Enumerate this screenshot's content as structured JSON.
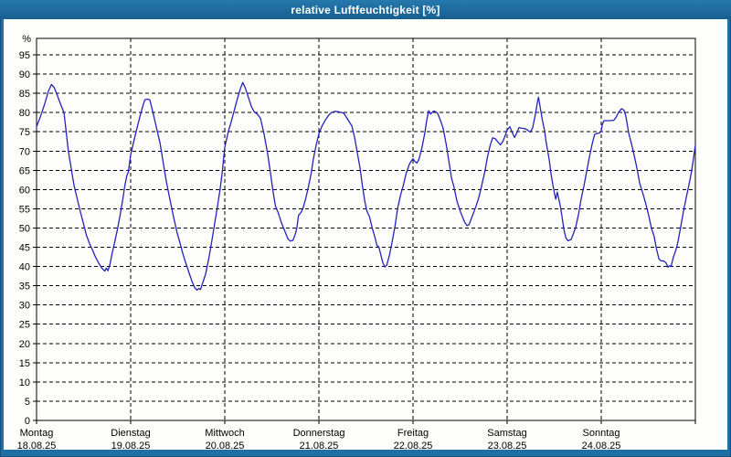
{
  "window": {
    "title": "relative Luftfeuchtigkeit [%]"
  },
  "colors": {
    "frame_blue": "#1d6fa5",
    "titlebar_gradient_top": "#2679ae",
    "titlebar_gradient_bottom": "#175e90",
    "plot_background": "#fdfdfb",
    "grid_black": "#000000",
    "line_blue": "#2323bb"
  },
  "chart_data": {
    "type": "line",
    "title": "relative Luftfeuchtigkeit [%]",
    "ylabel": "%",
    "ylim": [
      0,
      99
    ],
    "y_ticks": [
      0,
      5,
      10,
      15,
      20,
      25,
      30,
      35,
      40,
      45,
      50,
      55,
      60,
      65,
      70,
      75,
      80,
      85,
      90,
      95
    ],
    "grid": "dashed",
    "legend_position": "none",
    "x_axis": {
      "unit": "hours",
      "range": [
        0,
        168
      ],
      "hours_per_day": 24
    },
    "days": [
      {
        "name": "Montag",
        "date": "18.08.25"
      },
      {
        "name": "Dienstag",
        "date": "19.08.25"
      },
      {
        "name": "Mittwoch",
        "date": "20.08.25"
      },
      {
        "name": "Donnerstag",
        "date": "21.08.25"
      },
      {
        "name": "Freitag",
        "date": "22.08.25"
      },
      {
        "name": "Samstag",
        "date": "23.08.25"
      },
      {
        "name": "Sonntag",
        "date": "24.08.25"
      }
    ],
    "series": [
      {
        "name": "relative Luftfeuchtigkeit [%]",
        "color": "#2323bb",
        "points": [
          [
            0,
            76.3
          ],
          [
            1,
            79
          ],
          [
            2,
            82
          ],
          [
            3,
            85.5
          ],
          [
            3.8,
            87.3
          ],
          [
            4.5,
            86.5
          ],
          [
            5.1,
            85
          ],
          [
            6,
            82.5
          ],
          [
            7,
            80
          ],
          [
            7.5,
            75.5
          ],
          [
            8.1,
            70
          ],
          [
            9,
            64.5
          ],
          [
            9.6,
            60.9
          ],
          [
            10.5,
            57
          ],
          [
            11.3,
            53.7
          ],
          [
            12,
            51
          ],
          [
            12.7,
            48.2
          ],
          [
            13.5,
            46
          ],
          [
            14.3,
            44.2
          ],
          [
            15,
            42.5
          ],
          [
            15.8,
            41
          ],
          [
            16.5,
            39.8
          ],
          [
            17,
            39.2
          ],
          [
            17.4,
            38.8
          ],
          [
            17.8,
            39.6
          ],
          [
            18.2,
            38.9
          ],
          [
            18.7,
            40.5
          ],
          [
            19.3,
            43.5
          ],
          [
            19.8,
            45.8
          ],
          [
            20.6,
            49.5
          ],
          [
            21.4,
            53.8
          ],
          [
            22,
            57.5
          ],
          [
            22.5,
            61
          ],
          [
            23,
            63.5
          ],
          [
            23.4,
            64.5
          ],
          [
            24,
            69
          ],
          [
            24.8,
            72.5
          ],
          [
            25.6,
            75.9
          ],
          [
            26.5,
            79.5
          ],
          [
            27.2,
            82
          ],
          [
            27.6,
            83.3
          ],
          [
            28.3,
            83.5
          ],
          [
            28.9,
            83.3
          ],
          [
            29.8,
            79.5
          ],
          [
            30.6,
            76
          ],
          [
            31.5,
            72
          ],
          [
            32.3,
            67
          ],
          [
            33.1,
            62
          ],
          [
            34,
            57.5
          ],
          [
            34.9,
            53
          ],
          [
            35.8,
            49
          ],
          [
            36.6,
            46
          ],
          [
            37.4,
            43
          ],
          [
            38.2,
            40.5
          ],
          [
            39,
            38
          ],
          [
            39.6,
            36.2
          ],
          [
            40.3,
            34.5
          ],
          [
            40.9,
            33.9
          ],
          [
            41.4,
            34.3
          ],
          [
            41.8,
            34
          ],
          [
            42.3,
            35.5
          ],
          [
            43.1,
            38
          ],
          [
            44,
            42.5
          ],
          [
            44.7,
            46.6
          ],
          [
            45.4,
            51
          ],
          [
            46.1,
            55.3
          ],
          [
            46.8,
            60
          ],
          [
            47.3,
            64
          ],
          [
            48,
            71
          ],
          [
            48.9,
            75.1
          ],
          [
            49.6,
            77.5
          ],
          [
            50.4,
            80.5
          ],
          [
            51.2,
            83.5
          ],
          [
            52,
            86.3
          ],
          [
            52.6,
            87.8
          ],
          [
            53.2,
            86.5
          ],
          [
            54,
            84
          ],
          [
            54.8,
            81.5
          ],
          [
            55.5,
            80.2
          ],
          [
            56.3,
            79.6
          ],
          [
            57.1,
            78.5
          ],
          [
            58,
            74.5
          ],
          [
            58.9,
            69.5
          ],
          [
            59.7,
            64
          ],
          [
            60.3,
            59.5
          ],
          [
            60.9,
            55.8
          ],
          [
            61.6,
            54
          ],
          [
            62.4,
            51.5
          ],
          [
            63.2,
            49.5
          ],
          [
            64.1,
            47.2
          ],
          [
            64.7,
            46.6
          ],
          [
            65.4,
            46.8
          ],
          [
            66,
            48.5
          ],
          [
            66.4,
            50.2
          ],
          [
            66.8,
            53.3
          ],
          [
            67.4,
            54
          ],
          [
            67.9,
            55
          ],
          [
            68.6,
            57.5
          ],
          [
            69.2,
            60.1
          ],
          [
            70,
            64
          ],
          [
            70.6,
            68
          ],
          [
            71.3,
            71.5
          ],
          [
            72,
            74.5
          ],
          [
            72.8,
            76.5
          ],
          [
            73.6,
            78
          ],
          [
            74.5,
            79.3
          ],
          [
            75.2,
            80
          ],
          [
            76,
            80.3
          ],
          [
            77,
            80.2
          ],
          [
            78.3,
            79.9
          ],
          [
            79.2,
            78.5
          ],
          [
            80.4,
            76.5
          ],
          [
            81.1,
            73.5
          ],
          [
            81.8,
            69.5
          ],
          [
            82.5,
            65.5
          ],
          [
            83.1,
            61
          ],
          [
            83.7,
            57
          ],
          [
            84.2,
            54.5
          ],
          [
            84.9,
            52.9
          ],
          [
            85.6,
            50
          ],
          [
            86.3,
            47.5
          ],
          [
            86.8,
            45.5
          ],
          [
            87.3,
            45
          ],
          [
            87.8,
            43
          ],
          [
            88.3,
            41
          ],
          [
            88.8,
            39.9
          ],
          [
            89.3,
            40.3
          ],
          [
            90,
            43
          ],
          [
            90.7,
            46.6
          ],
          [
            91.4,
            50.5
          ],
          [
            92.1,
            55.3
          ],
          [
            92.8,
            58.5
          ],
          [
            93.5,
            61
          ],
          [
            94.2,
            64
          ],
          [
            95,
            66.4
          ],
          [
            95.6,
            67.5
          ],
          [
            96,
            68
          ],
          [
            96.5,
            67.3
          ],
          [
            97,
            66.9
          ],
          [
            97.5,
            67.8
          ],
          [
            98.3,
            71
          ],
          [
            99,
            74.7
          ],
          [
            99.5,
            78
          ],
          [
            100,
            80.5
          ],
          [
            100.5,
            79.6
          ],
          [
            101.2,
            80.4
          ],
          [
            101.8,
            80.2
          ],
          [
            102.3,
            79.8
          ],
          [
            103,
            78
          ],
          [
            103.7,
            75.9
          ],
          [
            104.5,
            71.5
          ],
          [
            105.2,
            67
          ],
          [
            105.8,
            63
          ],
          [
            106.4,
            60.9
          ],
          [
            107.2,
            57
          ],
          [
            108,
            54.5
          ],
          [
            108.6,
            52.9
          ],
          [
            109.2,
            51.5
          ],
          [
            109.8,
            50.6
          ],
          [
            110.3,
            50.9
          ],
          [
            111.2,
            53.3
          ],
          [
            112,
            55.5
          ],
          [
            112.8,
            58
          ],
          [
            113.5,
            61
          ],
          [
            114.3,
            64.5
          ],
          [
            115,
            68.5
          ],
          [
            115.7,
            71.5
          ],
          [
            116.3,
            73.4
          ],
          [
            117,
            73.2
          ],
          [
            117.7,
            72.3
          ],
          [
            118.3,
            71.6
          ],
          [
            118.9,
            72.5
          ],
          [
            119.5,
            74
          ],
          [
            120,
            75.5
          ],
          [
            120.7,
            76.3
          ],
          [
            121.3,
            74.8
          ],
          [
            121.9,
            73.5
          ],
          [
            122.5,
            74.8
          ],
          [
            123,
            76.1
          ],
          [
            123.8,
            75.9
          ],
          [
            124.6,
            75.8
          ],
          [
            125.3,
            75.4
          ],
          [
            125.9,
            74.9
          ],
          [
            126.5,
            76
          ],
          [
            127.1,
            79
          ],
          [
            127.7,
            82.5
          ],
          [
            128,
            84
          ],
          [
            128.4,
            81.5
          ],
          [
            129,
            78
          ],
          [
            129.5,
            75.5
          ],
          [
            130,
            72
          ],
          [
            130.7,
            68
          ],
          [
            131.2,
            64
          ],
          [
            131.7,
            61
          ],
          [
            132.1,
            58.9
          ],
          [
            132.4,
            57.5
          ],
          [
            132.8,
            59.3
          ],
          [
            133.2,
            57.5
          ],
          [
            133.6,
            55.5
          ],
          [
            134,
            52.9
          ],
          [
            134.5,
            49.5
          ],
          [
            135,
            47.4
          ],
          [
            135.5,
            46.7
          ],
          [
            136.3,
            47
          ],
          [
            136.9,
            48.5
          ],
          [
            137.5,
            50.3
          ],
          [
            138.2,
            53.5
          ],
          [
            138.9,
            57.7
          ],
          [
            139.6,
            61
          ],
          [
            140.3,
            64.8
          ],
          [
            141,
            68.5
          ],
          [
            141.7,
            71.9
          ],
          [
            142.3,
            74.3
          ],
          [
            143,
            74.6
          ],
          [
            143.6,
            74.7
          ],
          [
            144,
            75.2
          ],
          [
            144.3,
            77
          ],
          [
            144.7,
            77.9
          ],
          [
            145.5,
            77.9
          ],
          [
            146.3,
            77.9
          ],
          [
            147.2,
            78
          ],
          [
            147.8,
            78.8
          ],
          [
            148.5,
            80.2
          ],
          [
            149.2,
            81
          ],
          [
            149.8,
            80.6
          ],
          [
            150.3,
            79
          ],
          [
            151,
            74.7
          ],
          [
            151.8,
            71.5
          ],
          [
            152.4,
            68.8
          ],
          [
            153.1,
            65.5
          ],
          [
            153.8,
            61.6
          ],
          [
            154.6,
            59
          ],
          [
            155.3,
            56.5
          ],
          [
            156.1,
            53.3
          ],
          [
            156.8,
            50
          ],
          [
            157.5,
            47.8
          ],
          [
            158.1,
            44.5
          ],
          [
            158.7,
            42
          ],
          [
            159.2,
            41.5
          ],
          [
            160,
            41.4
          ],
          [
            160.5,
            41
          ],
          [
            161,
            39.8
          ],
          [
            161.4,
            40.2
          ],
          [
            161.8,
            40
          ],
          [
            162.4,
            42.5
          ],
          [
            163.1,
            44.5
          ],
          [
            163.6,
            46.6
          ],
          [
            164.3,
            50.5
          ],
          [
            165,
            54.5
          ],
          [
            165.7,
            58
          ],
          [
            166.3,
            60.9
          ],
          [
            167,
            64.5
          ],
          [
            167.5,
            68
          ],
          [
            168,
            71.5
          ]
        ]
      }
    ]
  }
}
